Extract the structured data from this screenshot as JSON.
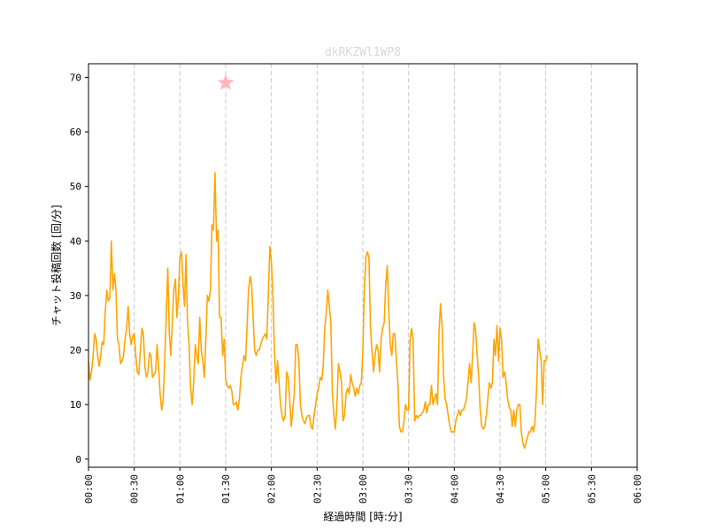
{
  "chart_data": {
    "type": "line",
    "title": "dkRKZWl1WP8",
    "xlabel": "経過時間 [時:分]",
    "ylabel": "チャット投稿回数 [回/分]",
    "xlim": [
      0,
      360
    ],
    "ylim": [
      -1.5,
      72.5
    ],
    "x_ticks": [
      0,
      30,
      60,
      90,
      120,
      150,
      180,
      210,
      240,
      270,
      300,
      330,
      360
    ],
    "x_tick_labels": [
      "00:00",
      "00:30",
      "01:00",
      "01:30",
      "02:00",
      "02:30",
      "03:00",
      "03:30",
      "04:00",
      "04:30",
      "05:00",
      "05:30",
      "06:00"
    ],
    "y_ticks": [
      0,
      10,
      20,
      30,
      40,
      50,
      60,
      70
    ],
    "y_tick_labels": [
      "0",
      "10",
      "20",
      "30",
      "40",
      "50",
      "60",
      "70"
    ],
    "grid": "vertical-dashed",
    "line_color": "#ffa500",
    "marker": {
      "x": 90,
      "y": 69,
      "shape": "star",
      "color": "#ffb6c1"
    },
    "series": [
      {
        "points": [
          [
            0,
            18
          ],
          [
            1,
            14.5
          ],
          [
            2,
            16
          ],
          [
            3,
            19
          ],
          [
            4,
            23
          ],
          [
            5,
            22
          ],
          [
            6,
            19
          ],
          [
            7,
            17
          ],
          [
            8,
            19
          ],
          [
            9,
            21.5
          ],
          [
            10,
            21
          ],
          [
            11,
            27
          ],
          [
            12,
            31
          ],
          [
            13,
            29
          ],
          [
            14,
            29.5
          ],
          [
            15,
            40
          ],
          [
            16,
            31
          ],
          [
            17,
            34
          ],
          [
            18,
            31
          ],
          [
            19,
            22
          ],
          [
            20,
            21
          ],
          [
            21,
            17.5
          ],
          [
            22,
            18
          ],
          [
            23,
            19
          ],
          [
            24,
            22
          ],
          [
            25,
            24
          ],
          [
            26,
            28
          ],
          [
            27,
            23
          ],
          [
            28,
            21
          ],
          [
            29,
            22.5
          ],
          [
            30,
            23
          ],
          [
            31,
            19
          ],
          [
            32,
            16
          ],
          [
            33,
            15.5
          ],
          [
            34,
            20
          ],
          [
            35,
            24
          ],
          [
            36,
            23
          ],
          [
            37,
            17
          ],
          [
            38,
            15
          ],
          [
            39,
            16
          ],
          [
            40,
            19.5
          ],
          [
            41,
            19
          ],
          [
            42,
            15
          ],
          [
            43,
            15.5
          ],
          [
            44,
            16
          ],
          [
            45,
            21
          ],
          [
            46,
            17
          ],
          [
            47,
            12
          ],
          [
            48,
            9
          ],
          [
            49,
            11
          ],
          [
            50,
            18
          ],
          [
            51,
            26
          ],
          [
            52,
            35
          ],
          [
            53,
            23
          ],
          [
            54,
            19
          ],
          [
            55,
            25
          ],
          [
            56,
            31
          ],
          [
            57,
            33
          ],
          [
            58,
            26
          ],
          [
            59,
            30
          ],
          [
            60,
            37
          ],
          [
            61,
            38
          ],
          [
            62,
            32
          ],
          [
            63,
            28
          ],
          [
            64,
            37.5
          ],
          [
            65,
            25
          ],
          [
            66,
            21
          ],
          [
            67,
            13
          ],
          [
            68,
            10
          ],
          [
            69,
            14
          ],
          [
            70,
            21
          ],
          [
            71,
            19
          ],
          [
            72,
            17.5
          ],
          [
            73,
            26
          ],
          [
            74,
            20
          ],
          [
            75,
            18
          ],
          [
            76,
            15
          ],
          [
            77,
            22
          ],
          [
            78,
            30
          ],
          [
            79,
            29
          ],
          [
            80,
            31
          ],
          [
            81,
            43
          ],
          [
            82,
            42
          ],
          [
            83,
            52.5
          ],
          [
            84,
            40
          ],
          [
            85,
            42
          ],
          [
            86,
            26
          ],
          [
            87,
            26
          ],
          [
            88,
            19
          ],
          [
            89,
            22
          ],
          [
            90,
            14.5
          ],
          [
            91,
            13.5
          ],
          [
            92,
            13
          ],
          [
            93,
            13.5
          ],
          [
            94,
            12.5
          ],
          [
            95,
            10
          ],
          [
            96,
            10
          ],
          [
            97,
            10.5
          ],
          [
            98,
            9
          ],
          [
            99,
            11
          ],
          [
            100,
            15
          ],
          [
            101,
            17
          ],
          [
            102,
            19
          ],
          [
            103,
            18
          ],
          [
            104,
            24
          ],
          [
            105,
            31
          ],
          [
            106,
            33.5
          ],
          [
            107,
            32
          ],
          [
            108,
            26
          ],
          [
            109,
            20
          ],
          [
            110,
            19
          ],
          [
            111,
            20
          ],
          [
            112,
            20
          ],
          [
            113,
            21
          ],
          [
            114,
            22
          ],
          [
            115,
            22.5
          ],
          [
            116,
            23
          ],
          [
            117,
            22
          ],
          [
            118,
            30
          ],
          [
            119,
            39
          ],
          [
            120,
            36
          ],
          [
            121,
            30
          ],
          [
            122,
            20
          ],
          [
            123,
            14
          ],
          [
            124,
            18
          ],
          [
            125,
            14
          ],
          [
            126,
            10
          ],
          [
            127,
            8
          ],
          [
            128,
            7
          ],
          [
            129,
            8
          ],
          [
            130,
            16
          ],
          [
            131,
            15
          ],
          [
            132,
            11
          ],
          [
            133,
            6
          ],
          [
            134,
            9
          ],
          [
            135,
            12
          ],
          [
            136,
            21
          ],
          [
            137,
            21
          ],
          [
            138,
            18
          ],
          [
            139,
            10
          ],
          [
            140,
            8
          ],
          [
            141,
            7
          ],
          [
            142,
            6.5
          ],
          [
            143,
            7.5
          ],
          [
            144,
            8
          ],
          [
            145,
            8
          ],
          [
            146,
            6
          ],
          [
            147,
            5.5
          ],
          [
            148,
            8
          ],
          [
            149,
            10
          ],
          [
            150,
            12
          ],
          [
            151,
            13
          ],
          [
            152,
            15
          ],
          [
            153,
            14.5
          ],
          [
            154,
            17
          ],
          [
            155,
            24
          ],
          [
            156,
            27
          ],
          [
            157,
            31
          ],
          [
            158,
            28
          ],
          [
            159,
            25
          ],
          [
            160,
            12
          ],
          [
            161,
            8
          ],
          [
            162,
            5.5
          ],
          [
            163,
            10
          ],
          [
            164,
            17.5
          ],
          [
            165,
            16
          ],
          [
            166,
            14
          ],
          [
            167,
            7
          ],
          [
            168,
            8
          ],
          [
            169,
            12
          ],
          [
            170,
            13
          ],
          [
            171,
            12
          ],
          [
            172,
            15.5
          ],
          [
            173,
            14
          ],
          [
            174,
            13
          ],
          [
            175,
            11.5
          ],
          [
            176,
            13
          ],
          [
            177,
            12
          ],
          [
            178,
            13.5
          ],
          [
            179,
            14
          ],
          [
            180,
            20
          ],
          [
            181,
            31
          ],
          [
            182,
            37
          ],
          [
            183,
            38
          ],
          [
            184,
            37
          ],
          [
            185,
            24
          ],
          [
            186,
            20
          ],
          [
            187,
            16
          ],
          [
            188,
            19
          ],
          [
            189,
            21
          ],
          [
            190,
            20
          ],
          [
            191,
            16
          ],
          [
            192,
            22
          ],
          [
            193,
            24
          ],
          [
            194,
            25
          ],
          [
            195,
            32
          ],
          [
            196,
            35.5
          ],
          [
            197,
            27
          ],
          [
            198,
            21
          ],
          [
            199,
            19
          ],
          [
            200,
            23
          ],
          [
            201,
            23
          ],
          [
            202,
            18
          ],
          [
            203,
            14
          ],
          [
            204,
            6
          ],
          [
            205,
            5
          ],
          [
            206,
            5
          ],
          [
            207,
            7
          ],
          [
            208,
            10
          ],
          [
            209,
            9
          ],
          [
            210,
            9
          ],
          [
            211,
            22
          ],
          [
            212,
            24
          ],
          [
            213,
            22
          ],
          [
            214,
            7
          ],
          [
            215,
            8
          ],
          [
            216,
            7.5
          ],
          [
            217,
            8
          ],
          [
            218,
            8
          ],
          [
            219,
            8.5
          ],
          [
            220,
            9
          ],
          [
            221,
            10.5
          ],
          [
            222,
            8.5
          ],
          [
            223,
            10
          ],
          [
            224,
            10
          ],
          [
            225,
            13.5
          ],
          [
            226,
            10
          ],
          [
            227,
            11
          ],
          [
            228,
            12
          ],
          [
            229,
            10
          ],
          [
            230,
            23.5
          ],
          [
            231,
            28.5
          ],
          [
            232,
            24
          ],
          [
            233,
            15
          ],
          [
            234,
            11
          ],
          [
            235,
            10
          ],
          [
            236,
            8
          ],
          [
            237,
            6
          ],
          [
            238,
            5
          ],
          [
            239,
            5
          ],
          [
            240,
            5
          ],
          [
            241,
            7
          ],
          [
            242,
            8
          ],
          [
            243,
            9
          ],
          [
            244,
            8
          ],
          [
            245,
            9
          ],
          [
            246,
            9
          ],
          [
            247,
            10
          ],
          [
            248,
            11
          ],
          [
            249,
            14
          ],
          [
            250,
            17.5
          ],
          [
            251,
            14
          ],
          [
            252,
            19
          ],
          [
            253,
            25
          ],
          [
            254,
            23.5
          ],
          [
            255,
            19
          ],
          [
            256,
            15
          ],
          [
            257,
            9
          ],
          [
            258,
            6
          ],
          [
            259,
            5.5
          ],
          [
            260,
            6
          ],
          [
            261,
            8
          ],
          [
            262,
            11
          ],
          [
            263,
            14
          ],
          [
            264,
            13
          ],
          [
            265,
            14
          ],
          [
            266,
            22
          ],
          [
            267,
            19
          ],
          [
            268,
            24.5
          ],
          [
            269,
            18
          ],
          [
            270,
            24
          ],
          [
            271,
            22
          ],
          [
            272,
            15
          ],
          [
            273,
            16
          ],
          [
            274,
            14
          ],
          [
            275,
            11
          ],
          [
            276,
            9.5
          ],
          [
            277,
            9
          ],
          [
            278,
            6
          ],
          [
            279,
            9
          ],
          [
            280,
            6
          ],
          [
            281,
            9
          ],
          [
            282,
            10
          ],
          [
            283,
            10
          ],
          [
            284,
            5
          ],
          [
            285,
            3
          ],
          [
            286,
            2
          ],
          [
            287,
            3
          ],
          [
            288,
            4
          ],
          [
            289,
            5
          ],
          [
            290,
            5
          ],
          [
            291,
            6
          ],
          [
            292,
            5
          ],
          [
            293,
            7
          ],
          [
            294,
            13
          ],
          [
            295,
            22
          ],
          [
            296,
            20
          ],
          [
            297,
            18
          ],
          [
            298,
            10
          ],
          [
            299,
            18
          ],
          [
            300,
            18
          ],
          [
            301,
            19
          ]
        ]
      }
    ]
  }
}
